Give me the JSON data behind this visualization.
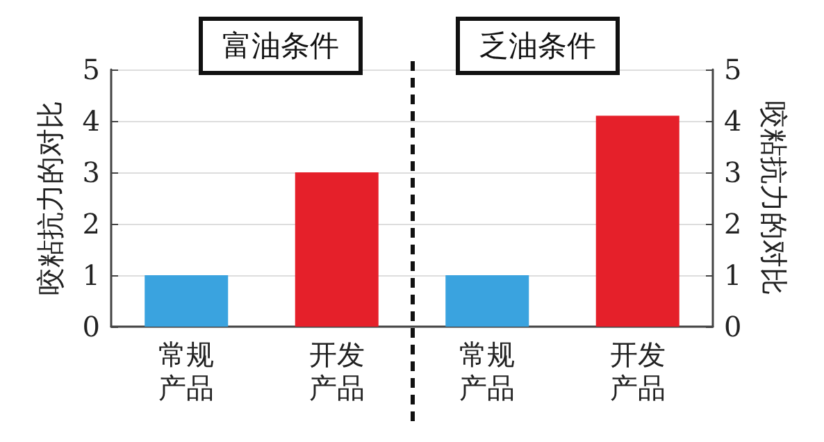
{
  "chart_data": {
    "type": "bar",
    "categories": [
      "常规产品",
      "开发产品",
      "常规产品",
      "开发产品"
    ],
    "values": [
      1,
      3,
      1,
      4.1
    ],
    "colors": [
      "#3aa3df",
      "#e5202a",
      "#3aa3df",
      "#e5202a"
    ],
    "ylabel": "咬粘抗力的对比",
    "y2label": "咬粘抗力的对比",
    "ylim": [
      0,
      5
    ],
    "yticks": [
      0,
      1,
      2,
      3,
      4,
      5
    ],
    "y2lim": [
      0,
      5
    ],
    "y2ticks": [
      0,
      1,
      2,
      3,
      4,
      5
    ],
    "grid": "y",
    "annotations": [
      "富油条件",
      "乏油条件"
    ]
  }
}
